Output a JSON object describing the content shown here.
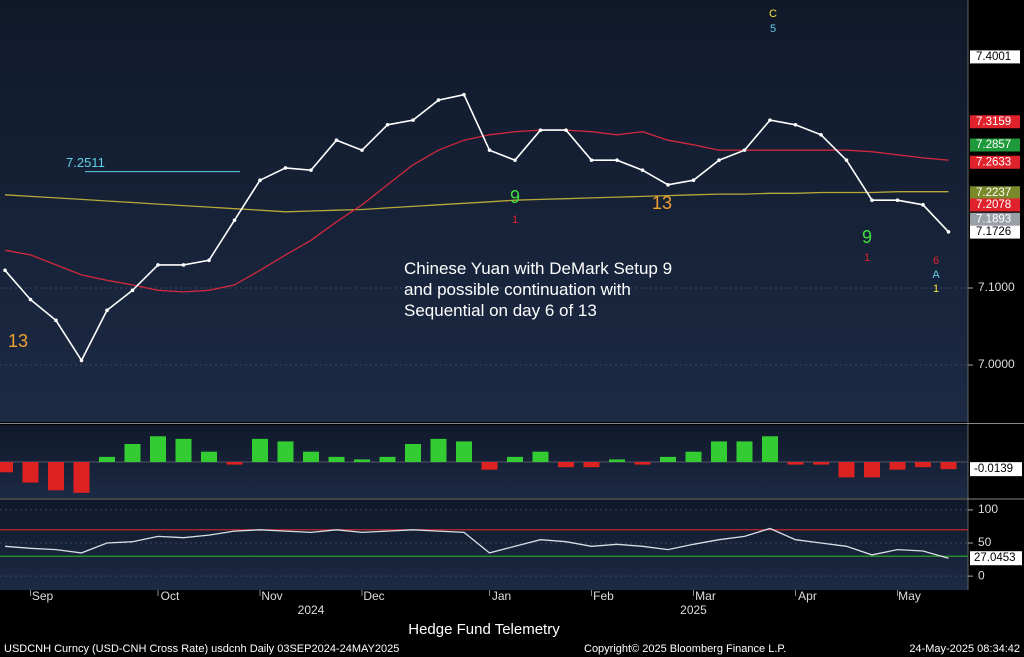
{
  "chart_data": [
    {
      "type": "line",
      "annotation": "Chinese Yuan with DeMark Setup 9 and possible continuation with Sequential on day 6 of 13",
      "categories": [
        null,
        "Sep",
        null,
        null,
        null,
        null,
        "Oct",
        null,
        null,
        null,
        "Nov",
        null,
        null,
        null,
        "Dec",
        null,
        null,
        null,
        null,
        "Jan",
        null,
        null,
        null,
        "Feb",
        null,
        null,
        null,
        "Mar",
        null,
        null,
        null,
        "Apr",
        null,
        null,
        null,
        "May",
        null,
        null
      ],
      "years": [
        "2024",
        "2025"
      ],
      "series": [
        {
          "color": "#ffffff",
          "values": [
            7.123,
            7.085,
            7.058,
            7.006,
            7.071,
            7.097,
            7.13,
            7.13,
            7.136,
            7.188,
            7.24,
            7.256,
            7.253,
            7.292,
            7.279,
            7.312,
            7.318,
            7.344,
            7.351,
            7.279,
            7.266,
            7.305,
            7.305,
            7.266,
            7.266,
            7.253,
            7.234,
            7.24,
            7.266,
            7.279,
            7.318,
            7.312,
            7.299,
            7.266,
            7.214,
            7.214,
            7.208,
            7.173
          ]
        },
        {
          "color": "#d0283c",
          "values": [
            7.149,
            7.143,
            7.13,
            7.117,
            7.11,
            7.104,
            7.097,
            7.095,
            7.097,
            7.104,
            7.123,
            7.143,
            7.162,
            7.186,
            7.208,
            7.234,
            7.26,
            7.279,
            7.292,
            7.299,
            7.303,
            7.305,
            7.305,
            7.303,
            7.299,
            7.303,
            7.292,
            7.286,
            7.279,
            7.279,
            7.279,
            7.279,
            7.279,
            7.279,
            7.277,
            7.273,
            7.269,
            7.266
          ]
        },
        {
          "color": "#b7a83a",
          "values": [
            7.221,
            7.219,
            7.217,
            7.215,
            7.213,
            7.211,
            7.209,
            7.207,
            7.205,
            7.203,
            7.201,
            7.199,
            7.2,
            7.201,
            7.202,
            7.204,
            7.206,
            7.208,
            7.21,
            7.212,
            7.214,
            7.215,
            7.216,
            7.217,
            7.218,
            7.219,
            7.22,
            7.221,
            7.222,
            7.222,
            7.223,
            7.223,
            7.224,
            7.224,
            7.224,
            7.225,
            7.225,
            7.225
          ]
        }
      ],
      "ylim": [
        6.926,
        7.474
      ],
      "yticks": [
        {
          "value": 7.0,
          "label": "7.0000"
        },
        {
          "value": 7.1,
          "label": "7.1000"
        }
      ],
      "level_line": {
        "value": 7.2511,
        "color": "#5fd0e8"
      },
      "price_labels": [
        {
          "value": 7.4001,
          "color": "#ffffff"
        },
        {
          "value": 7.3159,
          "color": "#e0222c"
        },
        {
          "value": 7.2857,
          "color": "#1f9a3a"
        },
        {
          "value": 7.2633,
          "color": "#e0222c"
        },
        {
          "value": 7.2237,
          "color": "#7a8a2a"
        },
        {
          "value": 7.2078,
          "color": "#e0222c"
        },
        {
          "value": 7.1893,
          "color": "#9aa0a8"
        },
        {
          "value": 7.1726,
          "color": "#ffffff"
        }
      ],
      "annotations": [
        {
          "text": "9",
          "color": "#3fe03f"
        },
        {
          "text": "9",
          "color": "#3fe03f"
        },
        {
          "text": "13",
          "color": "#f0a030"
        },
        {
          "text": "13",
          "color": "#f0a030"
        },
        {
          "text": "C",
          "color": "#f0e040"
        },
        {
          "text": "5",
          "color": "#5fd0e8"
        },
        {
          "text": "1",
          "color": "#e0222c"
        },
        {
          "text": "1",
          "color": "#e0222c"
        },
        {
          "text": "6",
          "color": "#e0222c"
        },
        {
          "text": "A",
          "color": "#5fd0e8"
        },
        {
          "text": "1",
          "color": "#f0e040"
        }
      ]
    },
    {
      "type": "bar",
      "values": [
        -0.02,
        -0.04,
        -0.055,
        -0.06,
        0.01,
        0.035,
        0.05,
        0.045,
        0.02,
        -0.005,
        0.045,
        0.04,
        0.02,
        0.01,
        0.005,
        0.01,
        0.035,
        0.045,
        0.04,
        -0.015,
        0.01,
        0.02,
        -0.01,
        -0.01,
        0.005,
        -0.005,
        0.01,
        0.02,
        0.04,
        0.04,
        0.05,
        -0.005,
        -0.005,
        -0.03,
        -0.03,
        -0.015,
        -0.01,
        -0.0139
      ],
      "colors": {
        "up": "#33cc33",
        "down": "#dd2222"
      },
      "ylim": [
        -0.07,
        0.07
      ],
      "last_value": -0.0139
    },
    {
      "type": "line",
      "values": [
        45,
        42,
        40,
        35,
        50,
        52,
        60,
        58,
        62,
        68,
        70,
        68,
        66,
        70,
        66,
        68,
        70,
        68,
        66,
        35,
        45,
        55,
        52,
        45,
        48,
        45,
        40,
        48,
        55,
        60,
        72,
        55,
        50,
        45,
        32,
        40,
        38,
        27
      ],
      "color": "#d8dde6",
      "ylim": [
        -21,
        115
      ],
      "yticks": [
        0,
        50,
        100
      ],
      "bands": [
        {
          "value": 70,
          "color": "#c0282c"
        },
        {
          "value": 30,
          "color": "#2aa02a"
        }
      ],
      "last_value": 27.0453
    }
  ],
  "footer": {
    "title": "Hedge Fund Telemetry",
    "source": "USDCNH Curncy (USD-CNH Cross Rate) usdcnh  Daily 03SEP2024-24MAY2025",
    "copyright": "Copyright© 2025 Bloomberg Finance L.P.",
    "timestamp": "24-May-2025 08:34:42"
  }
}
